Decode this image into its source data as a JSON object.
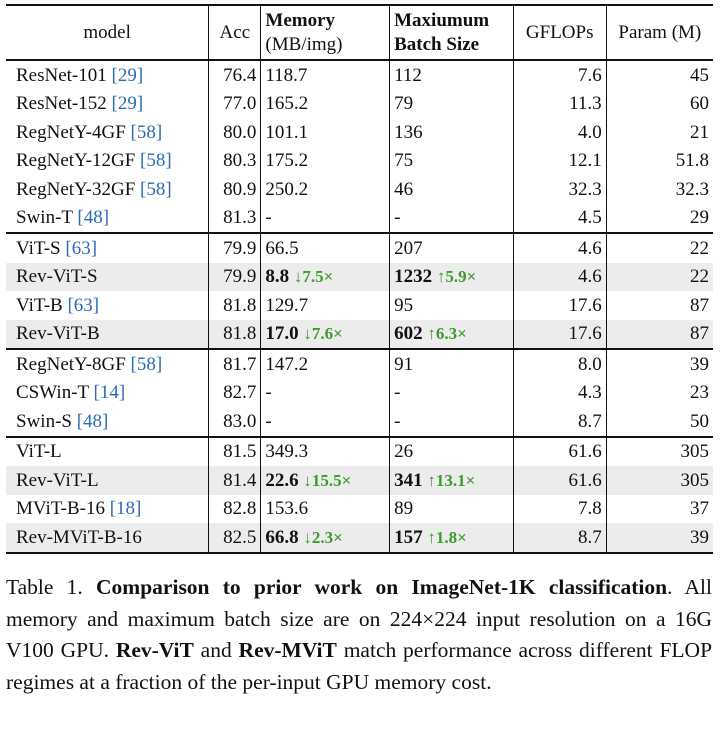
{
  "table": {
    "headers": {
      "model": "model",
      "acc": "Acc",
      "memory_line1": "Memory",
      "memory_line2": "(MB/img)",
      "batch_line1": "Maxiumum",
      "batch_line2": "Batch Size",
      "gflops": "GFLOPs",
      "param": "Param (M)"
    },
    "rows": [
      {
        "name": "ResNet-101",
        "ref": "[29]",
        "acc": "76.4",
        "mem": "118.7",
        "batch": "112",
        "gflops": "7.6",
        "param": "45"
      },
      {
        "name": "ResNet-152",
        "ref": "[29]",
        "acc": "77.0",
        "mem": "165.2",
        "batch": "79",
        "gflops": "11.3",
        "param": "60"
      },
      {
        "name": "RegNetY-4GF",
        "ref": "[58]",
        "acc": "80.0",
        "mem": "101.1",
        "batch": "136",
        "gflops": "4.0",
        "param": "21"
      },
      {
        "name": "RegNetY-12GF",
        "ref": "[58]",
        "acc": "80.3",
        "mem": "175.2",
        "batch": "75",
        "gflops": "12.1",
        "param": "51.8"
      },
      {
        "name": "RegNetY-32GF",
        "ref": "[58]",
        "acc": "80.9",
        "mem": "250.2",
        "batch": "46",
        "gflops": "32.3",
        "param": "32.3"
      },
      {
        "name": "Swin-T",
        "ref": "[48]",
        "acc": "81.3",
        "mem": "-",
        "batch": "-",
        "gflops": "4.5",
        "param": "29"
      },
      {
        "name": "ViT-S",
        "ref": "[63]",
        "acc": "79.9",
        "mem": "66.5",
        "batch": "207",
        "gflops": "4.6",
        "param": "22"
      },
      {
        "name": "Rev-ViT-S",
        "acc": "79.9",
        "mem": "8.8",
        "mem_gain": "↓7.5×",
        "batch": "1232",
        "batch_gain": "↑5.9×",
        "gflops": "4.6",
        "param": "22"
      },
      {
        "name": "ViT-B",
        "ref": "[63]",
        "acc": "81.8",
        "mem": "129.7",
        "batch": "95",
        "gflops": "17.6",
        "param": "87"
      },
      {
        "name": "Rev-ViT-B",
        "acc": "81.8",
        "mem": "17.0",
        "mem_gain": "↓7.6×",
        "batch": "602",
        "batch_gain": "↑6.3×",
        "gflops": "17.6",
        "param": "87"
      },
      {
        "name": "RegNetY-8GF",
        "ref": "[58]",
        "acc": "81.7",
        "mem": "147.2",
        "batch": "91",
        "gflops": "8.0",
        "param": "39"
      },
      {
        "name": "CSWin-T",
        "ref": "[14]",
        "acc": "82.7",
        "mem": "-",
        "batch": "-",
        "gflops": "4.3",
        "param": "23"
      },
      {
        "name": "Swin-S",
        "ref": "[48]",
        "acc": "83.0",
        "mem": "-",
        "batch": "-",
        "gflops": "8.7",
        "param": "50"
      },
      {
        "name": "ViT-L",
        "acc": "81.5",
        "mem": "349.3",
        "batch": "26",
        "gflops": "61.6",
        "param": "305"
      },
      {
        "name": "Rev-ViT-L",
        "acc": "81.4",
        "mem": "22.6",
        "mem_gain": "↓15.5×",
        "batch": "341",
        "batch_gain": "↑13.1×",
        "gflops": "61.6",
        "param": "305"
      },
      {
        "name": "MViT-B-16",
        "ref": "[18]",
        "acc": "82.8",
        "mem": "153.6",
        "batch": "89",
        "gflops": "7.8",
        "param": "37"
      },
      {
        "name": "Rev-MViT-B-16",
        "acc": "82.5",
        "mem": "66.8",
        "mem_gain": "↓2.3×",
        "batch": "157",
        "batch_gain": "↑1.8×",
        "gflops": "8.7",
        "param": "39"
      }
    ]
  },
  "caption": {
    "label": "Table 1.",
    "bold": "Comparison to prior work on ImageNet-1K classification",
    "text1": ". All memory and maximum batch size are on 224×224 input resolution on a 16G V100 GPU.",
    "bold2": "Rev-ViT",
    "and": "and",
    "bold3": "Rev-MViT",
    "text2": "match performance across different FLOP regimes at a fraction of the per-input GPU memory cost."
  }
}
